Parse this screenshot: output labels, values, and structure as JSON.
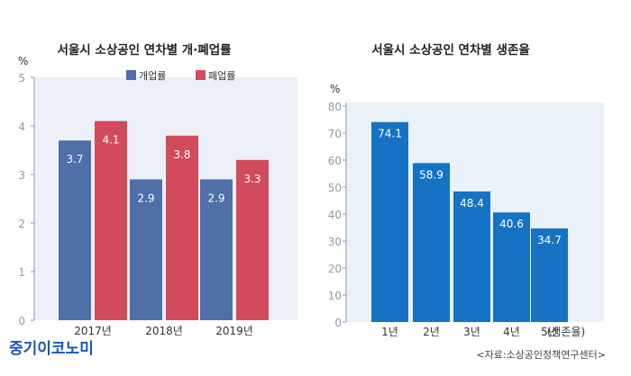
{
  "chart_data": [
    {
      "type": "bar",
      "title": "서울시 소상공인 연차별 개·폐업률",
      "ylabel": "%",
      "ylim": [
        0,
        5
      ],
      "yticks": [
        "0",
        "1",
        "2",
        "3",
        "4",
        "5"
      ],
      "categories": [
        "2017년",
        "2018년",
        "2019년"
      ],
      "series": [
        {
          "name": "개업률",
          "color": "#4e6fa8",
          "values": [
            3.7,
            2.9,
            2.9
          ],
          "labels": [
            "3.7",
            "2.9",
            "2.9"
          ]
        },
        {
          "name": "폐업률",
          "color": "#d14b5c",
          "values": [
            4.1,
            3.8,
            3.3
          ],
          "labels": [
            "4.1",
            "3.8",
            "3.3"
          ]
        }
      ],
      "legend": "top",
      "grid": false
    },
    {
      "type": "bar",
      "title": "서울시 소상공인 연차별 생존율",
      "ylabel": "%",
      "ylim": [
        0,
        80
      ],
      "yticks": [
        "0",
        "10",
        "20",
        "30",
        "40",
        "50",
        "60",
        "70",
        "80"
      ],
      "categories": [
        "1년",
        "2년",
        "3년",
        "4년",
        "5년"
      ],
      "xlabel": "(생존율)",
      "series": [
        {
          "color": "#1673c4",
          "values": [
            74.1,
            58.9,
            48.4,
            40.6,
            34.7
          ],
          "labels": [
            "74.1",
            "58.9",
            "48.4",
            "40.6",
            "34.7"
          ]
        }
      ],
      "grid": false
    }
  ],
  "source": "<자료:소상공인정책연구센터>",
  "brand": "중기이코노미"
}
